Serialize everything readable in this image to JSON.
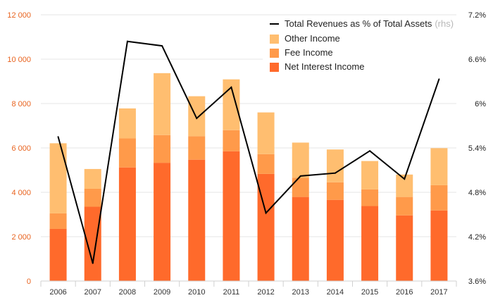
{
  "chart_data": {
    "type": "bar",
    "stacked": true,
    "categories": [
      "2006",
      "2007",
      "2008",
      "2009",
      "2010",
      "2011",
      "2012",
      "2013",
      "2014",
      "2015",
      "2016",
      "2017"
    ],
    "series": [
      {
        "name": "Net Interest Income",
        "values": [
          2350,
          3350,
          5120,
          5330,
          5470,
          5850,
          4830,
          3790,
          3660,
          3380,
          2960,
          3180
        ],
        "color": "#ff6a2b"
      },
      {
        "name": "Fee Income",
        "values": [
          700,
          810,
          1310,
          1250,
          1060,
          950,
          890,
          860,
          790,
          750,
          830,
          1140
        ],
        "color": "#ff9a4a"
      },
      {
        "name": "Other Income",
        "values": [
          3160,
          890,
          1350,
          2790,
          1800,
          2290,
          1880,
          1590,
          1480,
          1280,
          1010,
          1670
        ],
        "color": "#ffbe70"
      }
    ],
    "line": {
      "name": "Total Revenues as % of Total Assets",
      "note": "(rhs)",
      "axis": "right",
      "values": [
        5.55,
        3.84,
        6.84,
        6.78,
        5.8,
        6.22,
        4.52,
        5.02,
        5.06,
        5.36,
        4.98,
        6.33
      ],
      "color": "#000000"
    },
    "y_left": {
      "min": 0,
      "max": 12000,
      "ticks": [
        0,
        2000,
        4000,
        6000,
        8000,
        10000,
        12000
      ],
      "tick_labels": [
        "0",
        "2 000",
        "4 000",
        "6 000",
        "8 000",
        "10 000",
        "12 000"
      ],
      "color": "#e8631f"
    },
    "y_right": {
      "min": 3.6,
      "max": 7.2,
      "ticks": [
        3.6,
        4.2,
        4.8,
        5.4,
        6,
        6.6,
        7.2
      ],
      "tick_labels": [
        "3.6%",
        "4.2%",
        "4.8%",
        "5.4%",
        "6%",
        "6.6%",
        "7.2%"
      ]
    },
    "grid": true,
    "legend": {
      "placement": "top-right",
      "entries": [
        {
          "label": "Total Revenues as % of Total Assets",
          "note": "(rhs)",
          "kind": "line",
          "color": "#000000"
        },
        {
          "label": "Other Income",
          "kind": "box",
          "color": "#ffbe70"
        },
        {
          "label": "Fee Income",
          "kind": "box",
          "color": "#ff9a4a"
        },
        {
          "label": "Net Interest Income",
          "kind": "box",
          "color": "#ff6a2b"
        }
      ]
    }
  }
}
